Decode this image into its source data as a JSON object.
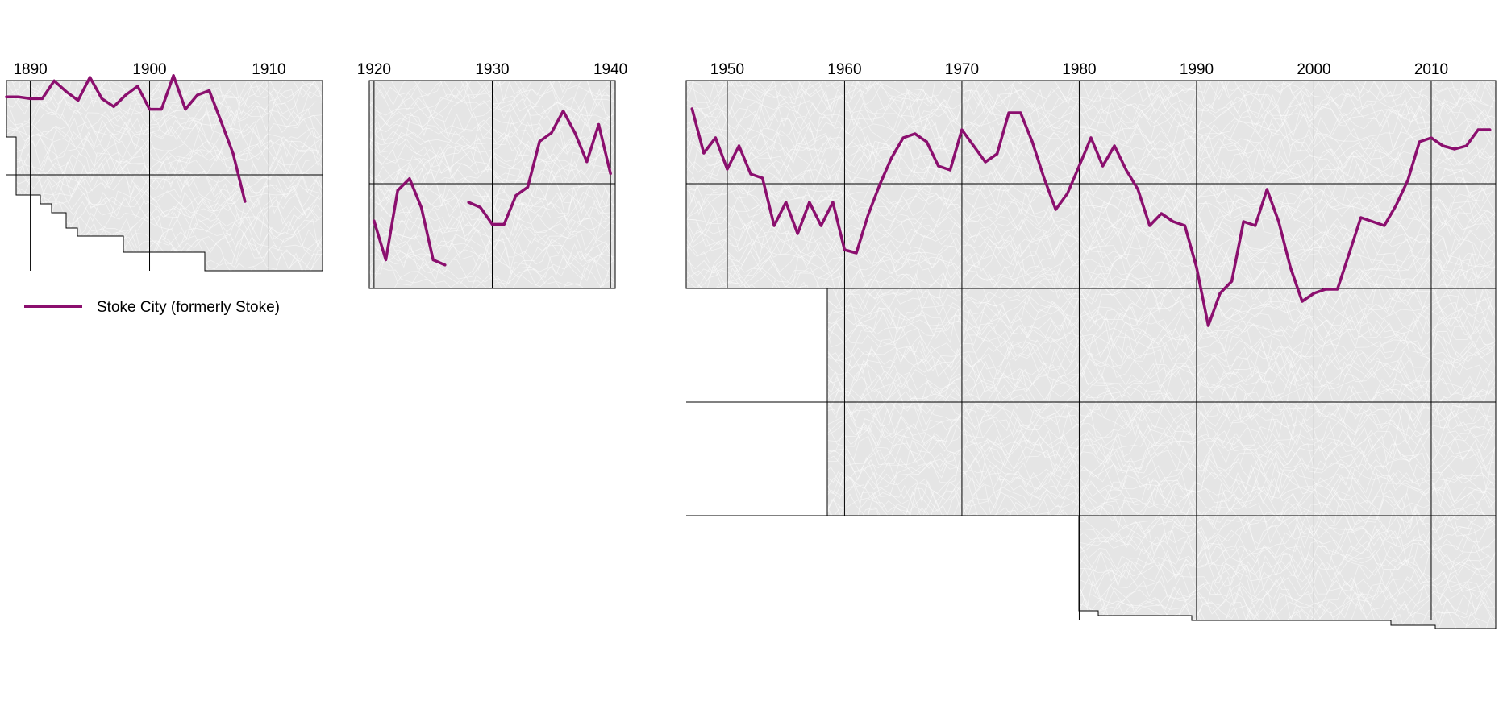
{
  "chart_data": [
    {
      "type": "line",
      "x_ticks": [
        1890,
        1900,
        1910
      ],
      "series": [
        {
          "name": "Stoke City (formerly Stoke)",
          "x": [
            1888,
            1889,
            1890,
            1891,
            1892,
            1893,
            1894,
            1895,
            1896,
            1897,
            1898,
            1899,
            1900,
            1901,
            1902,
            1903,
            1904,
            1905,
            1906,
            1907,
            1908
          ],
          "y": [
            88,
            88,
            86,
            86,
            106,
            94,
            84,
            110,
            86,
            77,
            90,
            100,
            74,
            74,
            112,
            74,
            90,
            95,
            60,
            24,
            -30
          ]
        }
      ]
    },
    {
      "type": "line",
      "x_ticks": [
        1920,
        1930,
        1940
      ],
      "series": [
        {
          "name": "Stoke City (formerly Stoke)",
          "x": [
            1920,
            1921,
            1922,
            1923,
            1924,
            1925,
            1926,
            null,
            1928,
            1929,
            1930,
            1931,
            1932,
            1933,
            1934,
            1935,
            1936,
            1937,
            1938,
            1939,
            1940
          ],
          "y": [
            -22,
            -45,
            -4,
            3,
            -14,
            -45,
            -48,
            null,
            -11,
            -14,
            -24,
            -24,
            -7,
            -2,
            25,
            30,
            43,
            30,
            13,
            35,
            6
          ]
        }
      ]
    },
    {
      "type": "line",
      "x_ticks": [
        1950,
        1960,
        1970,
        1980,
        1990,
        2000,
        2010
      ],
      "series": [
        {
          "name": "Stoke City (formerly Stoke)",
          "x": [
            1947,
            1948,
            1949,
            1950,
            1951,
            1952,
            1953,
            1954,
            1955,
            1956,
            1957,
            1958,
            1959,
            1960,
            1961,
            1962,
            1963,
            1964,
            1965,
            1966,
            1967,
            1968,
            1969,
            1970,
            1971,
            1972,
            1973,
            1974,
            1975,
            1976,
            1977,
            1978,
            1979,
            1980,
            1981,
            1982,
            1983,
            1984,
            1985,
            1986,
            1987,
            1988,
            1989,
            1990,
            1991,
            1992,
            1993,
            1994,
            1995,
            1996,
            1997,
            1998,
            1999,
            2000,
            2001,
            2002,
            2003,
            2004,
            2005,
            2006,
            2007,
            2008,
            2009,
            2010,
            2011,
            2012,
            2013,
            2014,
            2015
          ],
          "y": [
            93,
            38,
            57,
            18,
            47,
            12,
            7,
            -52,
            -23,
            -62,
            -23,
            -52,
            -23,
            -82,
            -86,
            -39,
            -1,
            32,
            57,
            62,
            52,
            22,
            17,
            67,
            47,
            27,
            37,
            88,
            88,
            52,
            7,
            -32,
            -12,
            22,
            57,
            22,
            47,
            17,
            -7,
            -52,
            -37,
            -47,
            -52,
            -104,
            -176,
            -136,
            -121,
            -47,
            -52,
            -7,
            -47,
            -104,
            -146,
            -136,
            -131,
            -131,
            -87,
            -42,
            -47,
            -52,
            -27,
            4,
            52,
            57,
            47,
            43,
            47,
            67,
            67
          ]
        }
      ]
    }
  ],
  "legend": {
    "label": "Stoke City (formerly Stoke)"
  },
  "colors": {
    "series": "#8b0f6e",
    "background_band": "#e5e5e5",
    "grid": "#000000"
  }
}
